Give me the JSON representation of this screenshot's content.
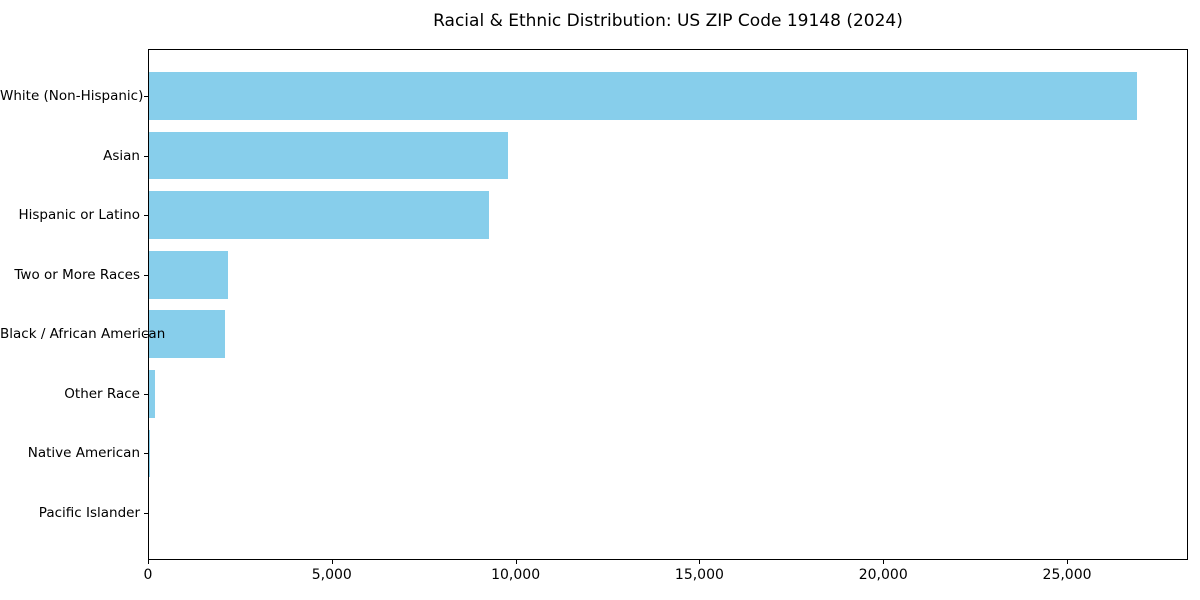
{
  "title": "Racial & Ethnic Distribution: US ZIP Code 19148 (2024)",
  "chart_data": {
    "type": "bar",
    "orientation": "horizontal",
    "title": "Racial & Ethnic Distribution: US ZIP Code 19148 (2024)",
    "xlabel": "",
    "ylabel": "",
    "categories": [
      "White (Non-Hispanic)",
      "Asian",
      "Hispanic or Latino",
      "Two or More Races",
      "Black / African American",
      "Other Race",
      "Native American",
      "Pacific Islander"
    ],
    "values": [
      26900,
      9790,
      9270,
      2170,
      2090,
      200,
      30,
      10
    ],
    "xlim": [
      0,
      28290
    ],
    "xticks": [
      {
        "value": 0,
        "label": "0"
      },
      {
        "value": 5000,
        "label": "5,000"
      },
      {
        "value": 10000,
        "label": "10,000"
      },
      {
        "value": 15000,
        "label": "15,000"
      },
      {
        "value": 20000,
        "label": "20,000"
      },
      {
        "value": 25000,
        "label": "25,000"
      }
    ],
    "bar_color": "#87CEEB",
    "background_color": "#FFFFFF",
    "grid": false,
    "legend": null
  }
}
